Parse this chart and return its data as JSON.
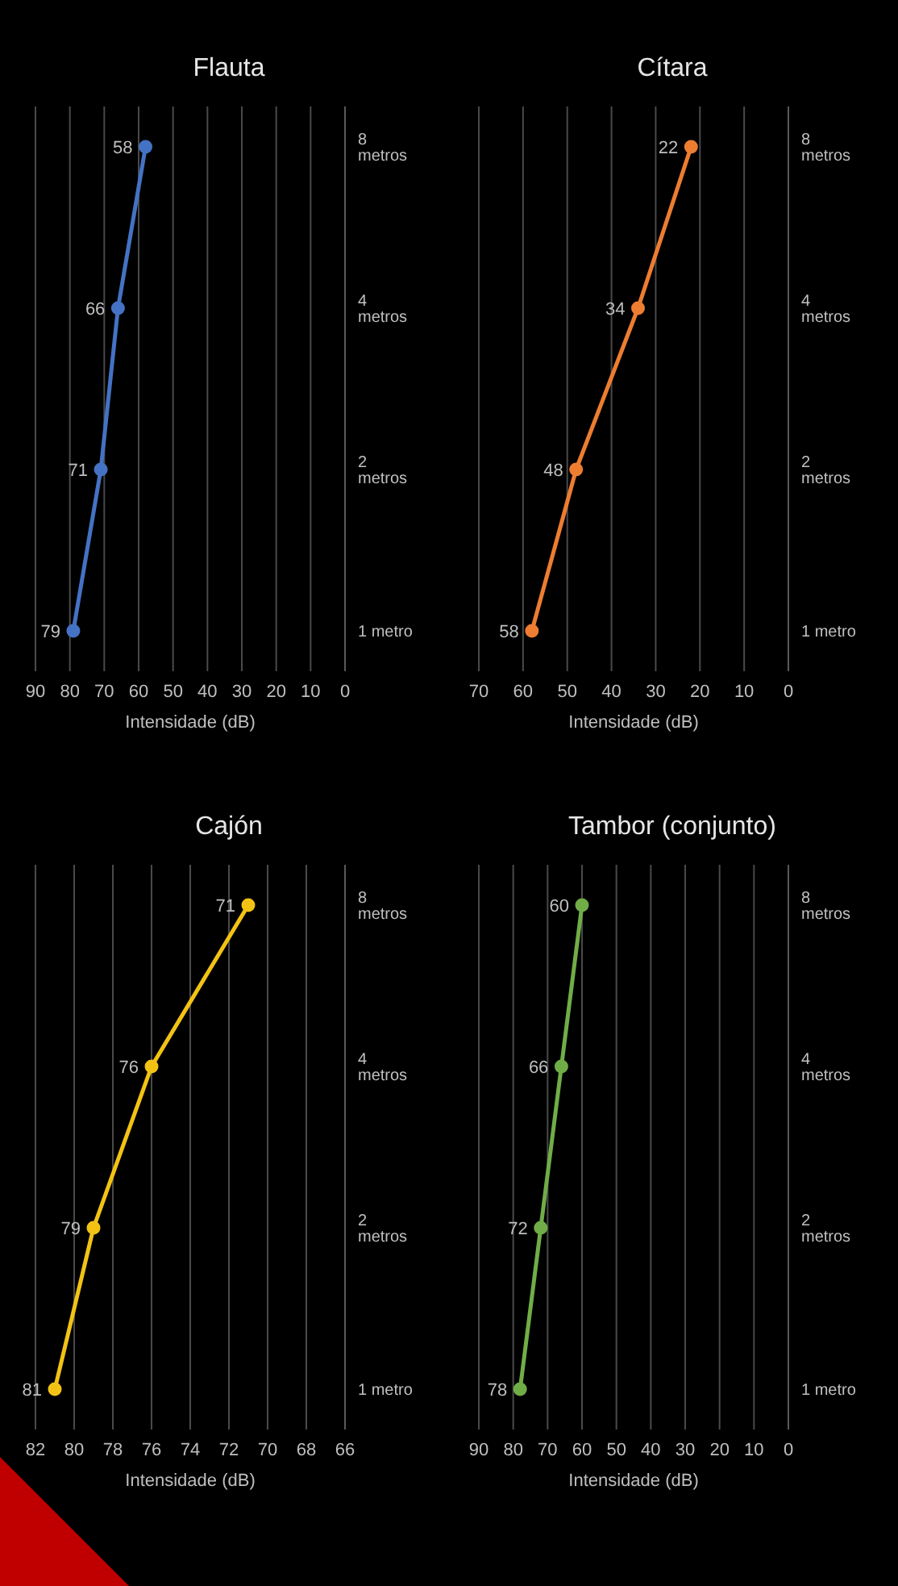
{
  "chart_data": [
    {
      "type": "line",
      "orientation": "horizontal",
      "title": "Cajón",
      "xlabel": "Intensidade (dB)",
      "categories": [
        "8 metros",
        "4 metros",
        "2 metros",
        "1 metro"
      ],
      "values": [
        71,
        76,
        79,
        81
      ],
      "color": "#f2c314",
      "xlim": [
        82,
        66
      ],
      "xticks": [
        82,
        80,
        78,
        76,
        74,
        72,
        70,
        68,
        66
      ],
      "grid": "x",
      "data_labels": true,
      "marker": "circle"
    },
    {
      "type": "line",
      "orientation": "horizontal",
      "title": "Flauta",
      "xlabel": "Intensidade (dB)",
      "categories": [
        "8 metros",
        "4 metros",
        "2 metros",
        "1 metro"
      ],
      "values": [
        58,
        66,
        71,
        79
      ],
      "color": "#4472c4",
      "xlim": [
        90,
        0
      ],
      "xticks": [
        90,
        80,
        70,
        60,
        50,
        40,
        30,
        20,
        10,
        0
      ],
      "grid": "x",
      "data_labels": true,
      "marker": "circle"
    },
    {
      "type": "line",
      "orientation": "horizontal",
      "title": "Tambor (conjunto)",
      "xlabel": "Intensidade (dB)",
      "categories": [
        "8 metros",
        "4 metros",
        "2 metros",
        "1 metro"
      ],
      "values": [
        60,
        66,
        72,
        78
      ],
      "color": "#70ad47",
      "xlim": [
        90,
        0
      ],
      "xticks": [
        90,
        80,
        70,
        60,
        50,
        40,
        30,
        20,
        10,
        0
      ],
      "grid": "x",
      "data_labels": true,
      "marker": "circle"
    },
    {
      "type": "line",
      "orientation": "horizontal",
      "title": "Cítara",
      "xlabel": "Intensidade (dB)",
      "categories": [
        "8 metros",
        "4 metros",
        "2 metros",
        "1 metro"
      ],
      "values": [
        22,
        34,
        48,
        58
      ],
      "color": "#ed7d31",
      "xlim": [
        70,
        0
      ],
      "xticks": [
        70,
        60,
        50,
        40,
        30,
        20,
        10,
        0
      ],
      "grid": "x",
      "data_labels": true,
      "marker": "circle"
    }
  ]
}
